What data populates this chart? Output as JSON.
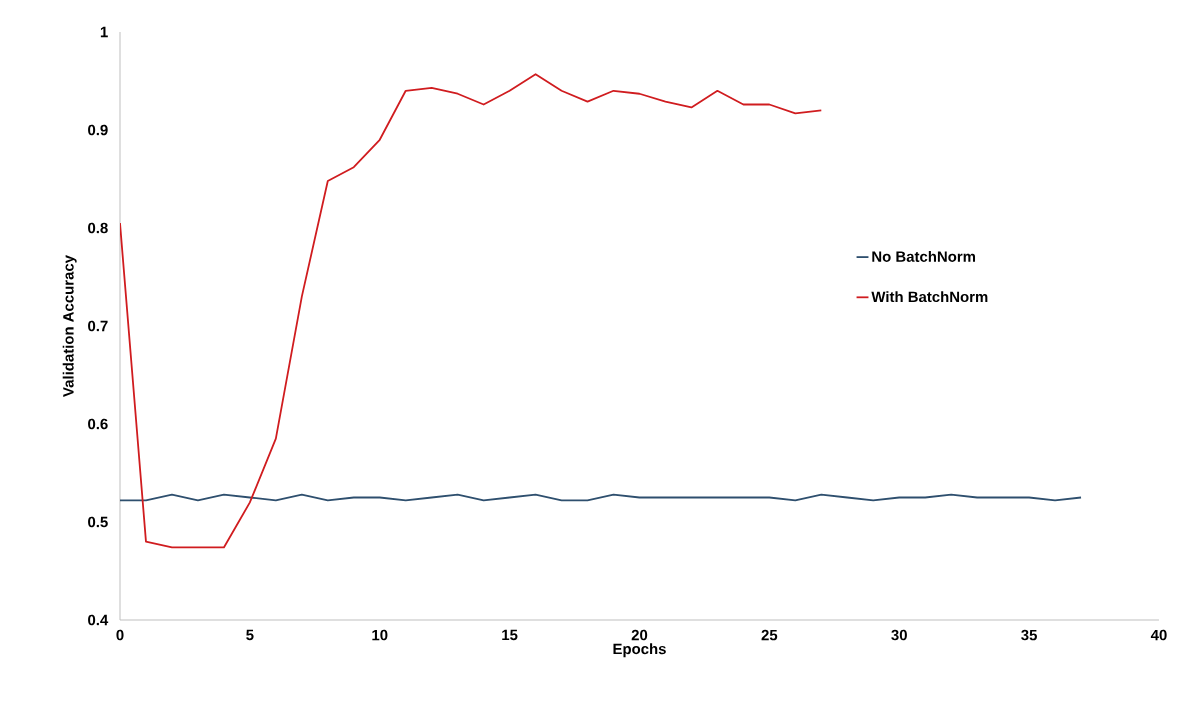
{
  "chart_data": {
    "type": "line",
    "xlabel": "Epochs",
    "ylabel": "Validation Accuracy",
    "xlim": [
      0,
      40
    ],
    "xticks": [
      0,
      5,
      10,
      15,
      20,
      25,
      30,
      35,
      40
    ],
    "ylim": [
      0.4,
      1
    ],
    "yticks": [
      0.4,
      0.5,
      0.6,
      0.7,
      0.8,
      0.9,
      1
    ],
    "grid": false,
    "legend": "right",
    "marker": "none",
    "line_style": "solid",
    "series": [
      {
        "name": "No BatchNorm",
        "color": "#2e4f6e",
        "x": [
          0,
          1,
          2,
          3,
          4,
          5,
          6,
          7,
          8,
          9,
          10,
          11,
          12,
          13,
          14,
          15,
          16,
          17,
          18,
          19,
          20,
          21,
          22,
          23,
          24,
          25,
          26,
          27,
          28,
          29,
          30,
          31,
          32,
          33,
          34,
          35,
          36,
          37
        ],
        "values": [
          0.522,
          0.522,
          0.528,
          0.522,
          0.528,
          0.525,
          0.522,
          0.528,
          0.522,
          0.525,
          0.525,
          0.522,
          0.525,
          0.528,
          0.522,
          0.525,
          0.528,
          0.522,
          0.522,
          0.528,
          0.525,
          0.525,
          0.525,
          0.525,
          0.525,
          0.525,
          0.522,
          0.528,
          0.525,
          0.522,
          0.525,
          0.525,
          0.528,
          0.525,
          0.525,
          0.525,
          0.522,
          0.525
        ]
      },
      {
        "name": "With BatchNorm",
        "color": "#d01c1f",
        "x": [
          0,
          1,
          2,
          3,
          4,
          5,
          6,
          7,
          8,
          9,
          10,
          11,
          12,
          13,
          14,
          15,
          16,
          17,
          18,
          19,
          20,
          21,
          22,
          23,
          24,
          25,
          26,
          27
        ],
        "values": [
          0.805,
          0.48,
          0.474,
          0.474,
          0.474,
          0.52,
          0.585,
          0.73,
          0.848,
          0.862,
          0.89,
          0.94,
          0.943,
          0.937,
          0.926,
          0.94,
          0.957,
          0.94,
          0.929,
          0.94,
          0.937,
          0.929,
          0.923,
          0.94,
          0.926,
          0.926,
          0.917,
          0.92
        ]
      }
    ]
  }
}
